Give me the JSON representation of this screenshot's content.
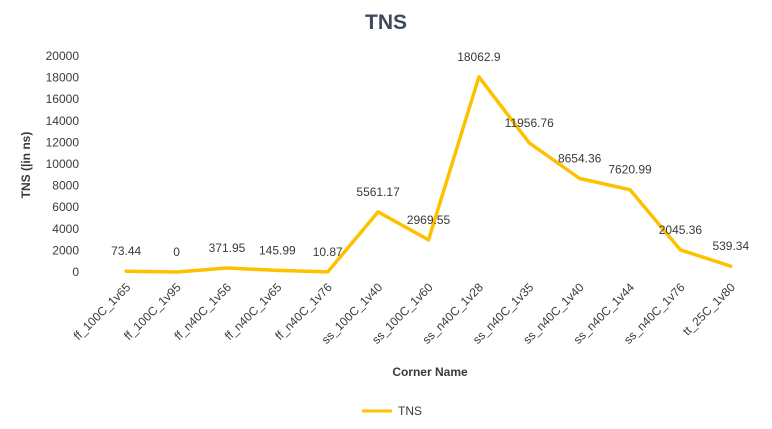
{
  "chart_data": {
    "type": "line",
    "title": "TNS",
    "xlabel": "Corner Name",
    "ylabel": "TNS (|in ns)",
    "ylim": [
      0,
      20000
    ],
    "yticks": [
      0,
      2000,
      4000,
      6000,
      8000,
      10000,
      12000,
      14000,
      16000,
      18000,
      20000
    ],
    "grid": false,
    "legend_position": "bottom",
    "categories": [
      "ff_100C_1v65",
      "ff_100C_1v95",
      "ff_n40C_1v56",
      "ff_n40C_1v65",
      "ff_n40C_1v76",
      "ss_100C_1v40",
      "ss_100C_1v60",
      "ss_n40C_1v28",
      "ss_n40C_1v35",
      "ss_n40C_1v40",
      "ss_n40C_1v44",
      "ss_n40C_1v76",
      "tt_25C_1v80"
    ],
    "series": [
      {
        "name": "TNS",
        "color": "#ffc000",
        "values": [
          73.44,
          0,
          371.95,
          145.99,
          10.87,
          5561.17,
          2969.55,
          18062.9,
          11956.76,
          8654.36,
          7620.99,
          2045.36,
          539.34
        ],
        "labels": [
          "73.44",
          "0",
          "371.95",
          "145.99",
          "10.87",
          "5561.17",
          "2969.55",
          "18062.9",
          "11956.76",
          "8654.36",
          "7620.99",
          "2045.36",
          "539.34"
        ]
      }
    ]
  }
}
